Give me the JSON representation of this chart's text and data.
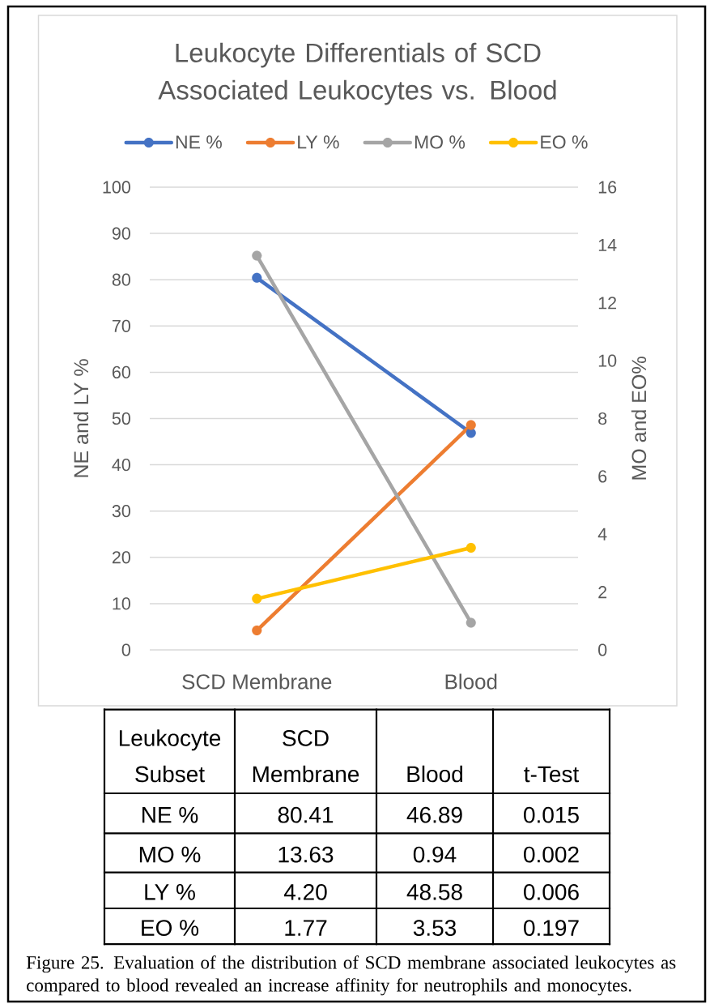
{
  "chart_data": {
    "type": "line",
    "title": "Leukocyte Differentials of SCD Associated Leukocytes vs. Blood",
    "ylabel": "NE and LY %",
    "y2label": "MO and EO%",
    "categories": [
      "SCD Membrane",
      "Blood"
    ],
    "series": [
      {
        "name": "NE %",
        "color": "#4472c4",
        "values": [
          80.41,
          46.89
        ],
        "value_labels": [
          "80.41",
          "46.89"
        ]
      },
      {
        "name": "MO %",
        "color": "#a5a5a5",
        "values": [
          13.63,
          0.94
        ],
        "value_labels": [
          "13.63",
          "0.94"
        ],
        "axis": "y2"
      },
      {
        "name": "LY %",
        "color": "#ed7d31",
        "values": [
          4.2,
          48.58
        ],
        "value_labels": [
          "4.20",
          "48.58"
        ]
      },
      {
        "name": "EO %",
        "color": "#ffc000",
        "values": [
          1.77,
          3.53
        ],
        "value_labels": [
          "1.77",
          "3.53"
        ],
        "axis": "y2"
      }
    ],
    "ylim": [
      0,
      100
    ],
    "yticks": [
      0,
      10,
      20,
      30,
      40,
      50,
      60,
      70,
      80,
      90,
      100
    ],
    "y2lim": [
      0,
      16
    ],
    "y2ticks": [
      0,
      2,
      4,
      6,
      8,
      10,
      12,
      14,
      16
    ],
    "grid": "y",
    "legend": "top",
    "marker": "circle",
    "line_style": "solid",
    "annotations": [
      "Leukocyte Subset",
      "t-Test",
      "0.015",
      "0.002",
      "0.006",
      "0.197",
      "Figure 25. Evaluation of the distribution of SCD membrane associated leukocytes as compared to blood revealed an increase affinity for neutrophils and monocytes."
    ]
  }
}
